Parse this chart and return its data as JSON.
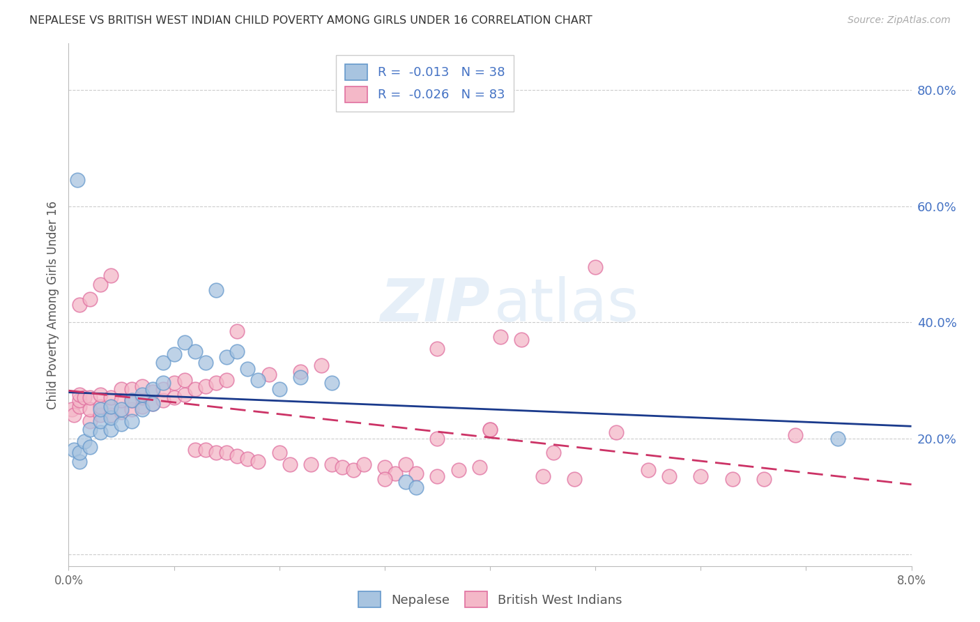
{
  "title": "NEPALESE VS BRITISH WEST INDIAN CHILD POVERTY AMONG GIRLS UNDER 16 CORRELATION CHART",
  "source": "Source: ZipAtlas.com",
  "ylabel": "Child Poverty Among Girls Under 16",
  "xlim": [
    0.0,
    0.08
  ],
  "ylim": [
    -0.02,
    0.88
  ],
  "yticks": [
    0.0,
    0.2,
    0.4,
    0.6,
    0.8
  ],
  "ytick_labels": [
    "",
    "20.0%",
    "40.0%",
    "60.0%",
    "80.0%"
  ],
  "xticks": [
    0.0,
    0.01,
    0.02,
    0.03,
    0.04,
    0.05,
    0.06,
    0.07,
    0.08
  ],
  "xtick_labels": [
    "0.0%",
    "",
    "",
    "",
    "",
    "",
    "",
    "",
    "8.0%"
  ],
  "nepalese_color": "#a8c4e0",
  "nepalese_edge_color": "#6699cc",
  "bwi_color": "#f4b8c8",
  "bwi_edge_color": "#e070a0",
  "trend_nepalese_color": "#1a3a8c",
  "trend_bwi_color": "#cc3366",
  "legend_text_color": "#4472c4",
  "nepalese_R": "-0.013",
  "nepalese_N": "38",
  "bwi_R": "-0.026",
  "bwi_N": "83",
  "trend_y_intercept_nep": 0.222,
  "trend_slope_nep": -0.05,
  "trend_y_intercept_bwi": 0.222,
  "trend_slope_bwi": -0.3,
  "nepalese_x": [
    0.0005,
    0.001,
    0.001,
    0.0015,
    0.002,
    0.002,
    0.003,
    0.003,
    0.003,
    0.004,
    0.004,
    0.004,
    0.005,
    0.005,
    0.006,
    0.006,
    0.007,
    0.007,
    0.008,
    0.008,
    0.009,
    0.009,
    0.01,
    0.011,
    0.012,
    0.013,
    0.014,
    0.015,
    0.016,
    0.017,
    0.018,
    0.02,
    0.022,
    0.025,
    0.032,
    0.033,
    0.073,
    0.0008
  ],
  "nepalese_y": [
    0.18,
    0.16,
    0.175,
    0.195,
    0.185,
    0.215,
    0.21,
    0.23,
    0.25,
    0.215,
    0.235,
    0.255,
    0.225,
    0.25,
    0.23,
    0.265,
    0.25,
    0.275,
    0.26,
    0.285,
    0.295,
    0.33,
    0.345,
    0.365,
    0.35,
    0.33,
    0.455,
    0.34,
    0.35,
    0.32,
    0.3,
    0.285,
    0.305,
    0.295,
    0.125,
    0.115,
    0.2,
    0.645
  ],
  "bwi_x": [
    0.0003,
    0.0005,
    0.001,
    0.001,
    0.001,
    0.001,
    0.0015,
    0.002,
    0.002,
    0.002,
    0.002,
    0.003,
    0.003,
    0.003,
    0.003,
    0.004,
    0.004,
    0.004,
    0.004,
    0.005,
    0.005,
    0.005,
    0.006,
    0.006,
    0.006,
    0.007,
    0.007,
    0.007,
    0.008,
    0.008,
    0.009,
    0.009,
    0.01,
    0.01,
    0.011,
    0.011,
    0.012,
    0.012,
    0.013,
    0.013,
    0.014,
    0.014,
    0.015,
    0.015,
    0.016,
    0.016,
    0.017,
    0.018,
    0.019,
    0.02,
    0.021,
    0.022,
    0.023,
    0.024,
    0.025,
    0.026,
    0.027,
    0.028,
    0.03,
    0.031,
    0.032,
    0.033,
    0.035,
    0.037,
    0.039,
    0.041,
    0.043,
    0.046,
    0.05,
    0.055,
    0.06,
    0.066,
    0.035,
    0.04,
    0.045,
    0.048,
    0.052,
    0.057,
    0.063,
    0.069,
    0.03,
    0.035,
    0.04
  ],
  "bwi_y": [
    0.25,
    0.24,
    0.255,
    0.265,
    0.275,
    0.43,
    0.27,
    0.23,
    0.25,
    0.27,
    0.44,
    0.24,
    0.255,
    0.275,
    0.465,
    0.24,
    0.255,
    0.27,
    0.48,
    0.245,
    0.265,
    0.285,
    0.25,
    0.265,
    0.285,
    0.255,
    0.27,
    0.29,
    0.26,
    0.28,
    0.265,
    0.285,
    0.27,
    0.295,
    0.275,
    0.3,
    0.285,
    0.18,
    0.29,
    0.18,
    0.295,
    0.175,
    0.3,
    0.175,
    0.385,
    0.17,
    0.165,
    0.16,
    0.31,
    0.175,
    0.155,
    0.315,
    0.155,
    0.325,
    0.155,
    0.15,
    0.145,
    0.155,
    0.15,
    0.14,
    0.155,
    0.14,
    0.135,
    0.145,
    0.15,
    0.375,
    0.37,
    0.175,
    0.495,
    0.145,
    0.135,
    0.13,
    0.2,
    0.215,
    0.135,
    0.13,
    0.21,
    0.135,
    0.13,
    0.205,
    0.13,
    0.355,
    0.215
  ]
}
